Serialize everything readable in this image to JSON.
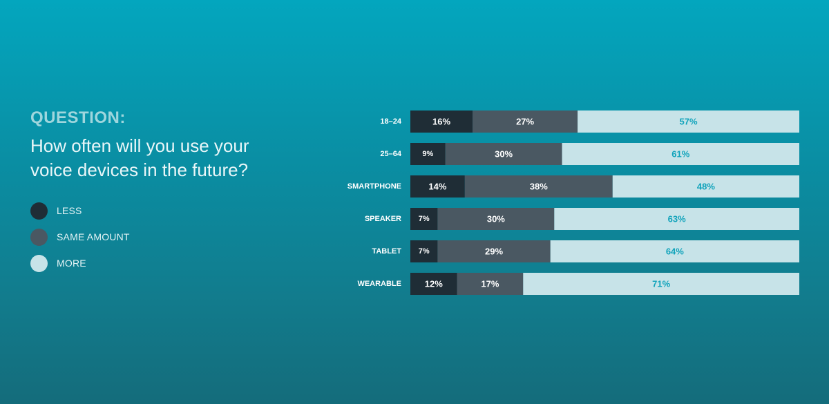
{
  "question": {
    "label": "QUESTION:",
    "text": "How often will you use your voice devices in the future?"
  },
  "legend": [
    {
      "label": "LESS",
      "color": "#1f2d36"
    },
    {
      "label": "SAME AMOUNT",
      "color": "#4a5862"
    },
    {
      "label": "MORE",
      "color": "#c7e3e8"
    }
  ],
  "chart_data": {
    "type": "bar",
    "orientation": "horizontal",
    "stacked": true,
    "percent_stacked": true,
    "categories": [
      "18–24",
      "25–64",
      "SMARTPHONE",
      "SPEAKER",
      "TABLET",
      "WEARABLE"
    ],
    "series": [
      {
        "name": "LESS",
        "color": "#1f2d36",
        "label_color": "#ffffff",
        "values": [
          16,
          9,
          14,
          7,
          7,
          12
        ]
      },
      {
        "name": "SAME AMOUNT",
        "color": "#4a5862",
        "label_color": "#ffffff",
        "values": [
          27,
          30,
          38,
          30,
          29,
          17
        ]
      },
      {
        "name": "MORE",
        "color": "#c7e3e8",
        "label_color": "#10a3bb",
        "values": [
          57,
          61,
          48,
          63,
          64,
          71
        ]
      }
    ],
    "value_suffix": "%",
    "xlim": [
      0,
      100
    ],
    "grid": false,
    "legend_position": "left"
  }
}
